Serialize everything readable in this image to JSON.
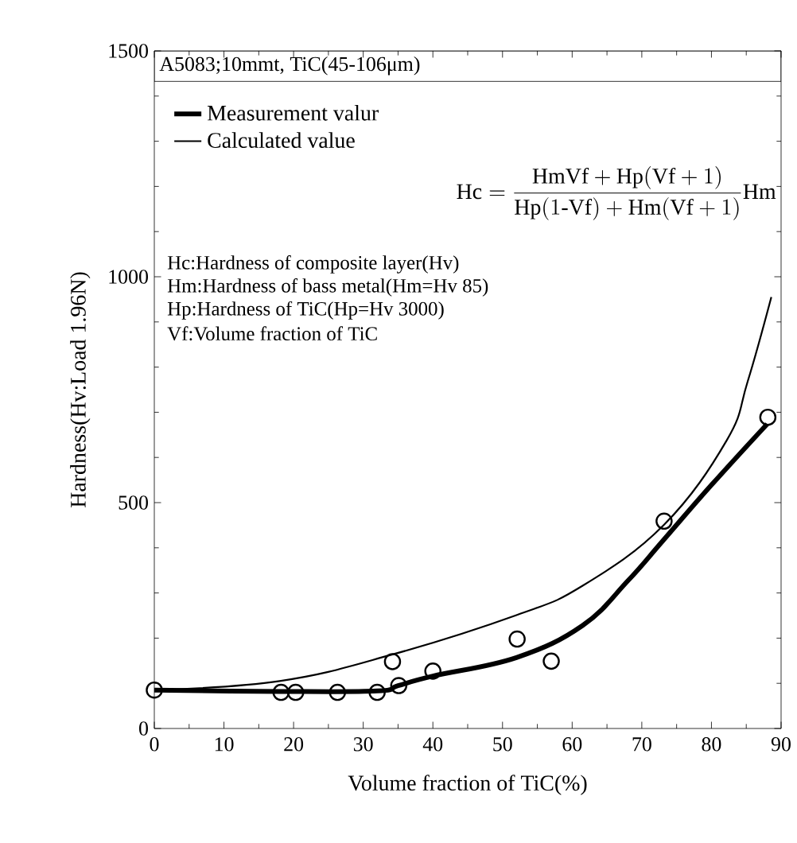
{
  "chart_data": {
    "type": "line",
    "xlabel": "Volume fraction of TiC(%)",
    "ylabel": "Hardness(Hv:Load 1.96N)",
    "xlim": [
      0,
      90
    ],
    "ylim": [
      0,
      1500
    ],
    "xticks": [
      0,
      10,
      20,
      30,
      40,
      50,
      60,
      70,
      80,
      90
    ],
    "yticks": [
      0,
      500,
      1000,
      1500
    ],
    "legend": "top left",
    "series": [
      {
        "name": "Measurement valur",
        "color": "#000000",
        "x": [
          0,
          18,
          32,
          35,
          40,
          52,
          61.5,
          68,
          73,
          80,
          88
        ],
        "values": [
          85,
          82,
          83,
          95,
          116,
          157,
          228,
          327,
          415,
          539,
          674
        ]
      },
      {
        "name": "Calculated value",
        "color": "#000000",
        "x": [
          0,
          18,
          34,
          52,
          61.5,
          73.2,
          82.2,
          85.2,
          88.6
        ],
        "values": [
          85,
          105,
          163,
          251,
          316,
          451,
          638,
          768,
          955
        ]
      },
      {
        "color": "#000000",
        "type": "scatter",
        "marker": "circle",
        "x": [
          0,
          18.2,
          20.3,
          26.3,
          32,
          34.2,
          35.1,
          40,
          52.1,
          57,
          73.2,
          88.1
        ],
        "values": [
          85,
          80,
          80,
          80,
          80,
          148,
          95,
          127,
          198,
          149,
          459,
          689
        ]
      }
    ],
    "annotations": [
      "A5083;10mmt, TiC(45-106μm)",
      "\\mathrm{Hc}=\\frac{\\mathrm{HmVf}+\\mathrm{Hp}(\\mathrm{Vf}+1)}{\\mathrm{Hp}(1\\text{-}\\mathrm{Vf})+\\mathrm{Hm}(\\mathrm{Vf}+1)}\\mathrm{Hm}",
      "Hc:Hardness of composite layer(Hv)",
      "Hm:Hardness of bass metal(Hm=Hv 85)",
      "Hp:Hardness of TiC(Hp=Hv 3000)",
      "Vf:Volume fraction of TiC"
    ]
  }
}
